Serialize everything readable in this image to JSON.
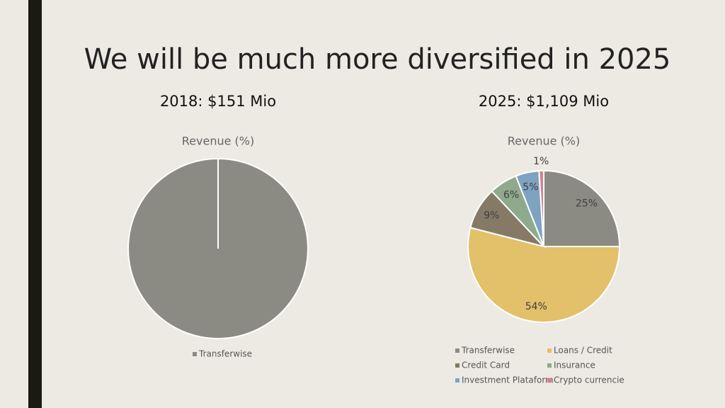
{
  "title": "We will be much more diversified in 2025",
  "chart_data": [
    {
      "type": "pie",
      "subtitle": "2018: $151 Mio",
      "title": "Revenue (%)",
      "categories": [
        "Transferwise"
      ],
      "values": [
        100
      ],
      "colors": [
        "#8b8b83"
      ]
    },
    {
      "type": "pie",
      "subtitle": "2025: $1,109 Mio",
      "title": "Revenue (%)",
      "categories": [
        "Transferwise",
        "Loans / Credit",
        "Credit Card",
        "Insurance",
        "Investment Plataform",
        "Crypto currencie"
      ],
      "values": [
        25,
        54,
        9,
        6,
        5,
        1
      ],
      "value_labels": [
        "25%",
        "54%",
        "9%",
        "6%",
        "5%",
        "1%"
      ],
      "colors": [
        "#8b8b83",
        "#e3c06a",
        "#857a66",
        "#8fa98c",
        "#7ea3c0",
        "#d97e8f"
      ]
    }
  ]
}
